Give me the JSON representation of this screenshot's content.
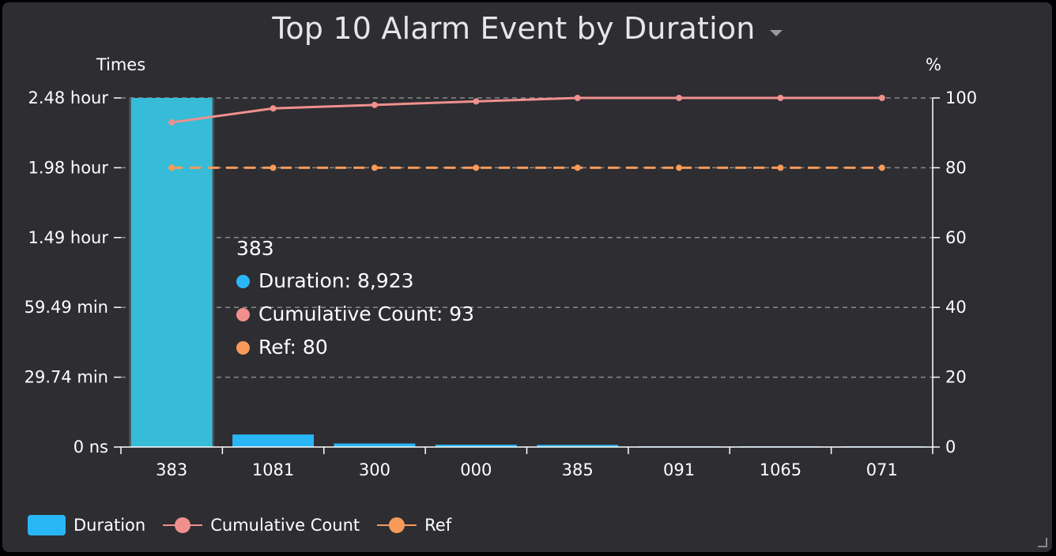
{
  "title": "Top 10 Alarm Event by Duration",
  "colors": {
    "duration": "#29b6f6",
    "duration_hover": "#36bcd8",
    "cumulative": "#f0908e",
    "ref": "#f79a5a",
    "axis": "#ffffff",
    "grid": "#8a8a8a",
    "hover_band": "#4a4a4c"
  },
  "chart_data": {
    "type": "bar",
    "categories": [
      "383",
      "1081",
      "300",
      "000",
      "385",
      "091",
      "1065",
      "071"
    ],
    "y_left": {
      "label": "Times",
      "ticks": [
        "0 ns",
        "29.74 min",
        "59.49 min",
        "1.49 hour",
        "1.98 hour",
        "2.48 hour"
      ],
      "range": [
        0,
        8923
      ]
    },
    "y_right": {
      "label": "%",
      "ticks": [
        "0",
        "20",
        "40",
        "60",
        "80",
        "100"
      ],
      "range": [
        0,
        100
      ]
    },
    "series": [
      {
        "name": "Duration",
        "type": "bar",
        "axis": "left",
        "values": [
          8923,
          320,
          90,
          60,
          55,
          12,
          6,
          4
        ]
      },
      {
        "name": "Cumulative Count",
        "type": "line",
        "axis": "right",
        "values": [
          93,
          97,
          98,
          99,
          100,
          100,
          100,
          100
        ]
      },
      {
        "name": "Ref",
        "type": "line",
        "style": "dashed",
        "axis": "right",
        "values": [
          80,
          80,
          80,
          80,
          80,
          80,
          80,
          80
        ]
      }
    ],
    "grid": true,
    "legend": "bottom-left",
    "highlighted_category": "383"
  },
  "tooltip": {
    "title": "383",
    "rows": [
      {
        "label": "Duration: 8,923"
      },
      {
        "label": "Cumulative Count: 93"
      },
      {
        "label": "Ref: 80"
      }
    ]
  },
  "legend": [
    {
      "label": "Duration"
    },
    {
      "label": "Cumulative Count"
    },
    {
      "label": "Ref"
    }
  ]
}
